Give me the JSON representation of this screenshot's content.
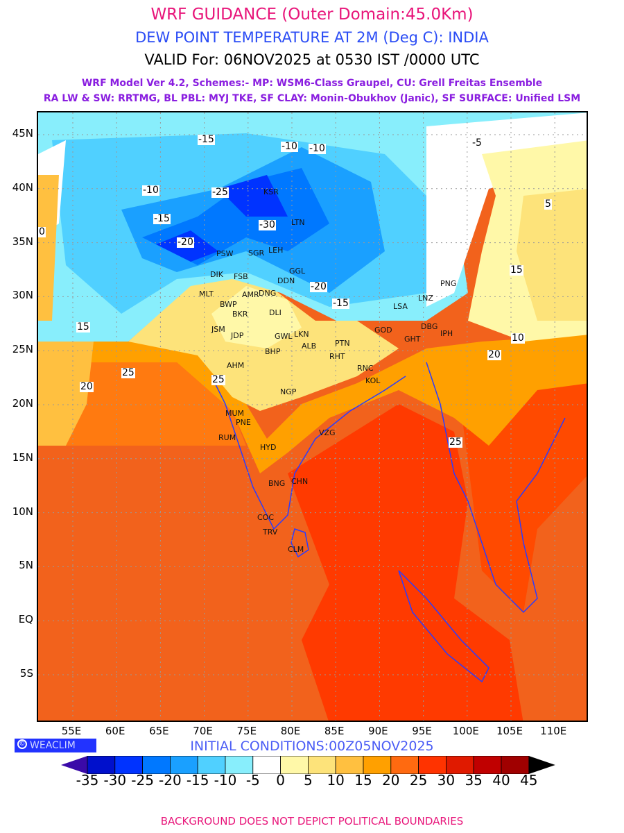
{
  "header": {
    "title": "WRF GUIDANCE (Outer Domain:45.0Km)",
    "subtitle": "DEW POINT TEMPERATURE AT 2M (Deg C): INDIA",
    "valid": "VALID For: 06NOV2025 at 0530 IST /0000 UTC",
    "model_line1": "WRF Model Ver 4.2, Schemes:- MP: WSM6-Class Graupel, CU: Grell Freitas Ensemble",
    "model_line2": "RA LW & SW: RRTMG, BL PBL: MYJ TKE, SF CLAY: Monin-Obukhov (Janic), SF SURFACE: Unified LSM"
  },
  "map": {
    "lat_labels": [
      "45N",
      "40N",
      "35N",
      "30N",
      "25N",
      "20N",
      "15N",
      "10N",
      "5N",
      "EQ",
      "5S"
    ],
    "lon_labels": [
      "55E",
      "60E",
      "65E",
      "70E",
      "75E",
      "80E",
      "85E",
      "90E",
      "95E",
      "100E",
      "105E",
      "110E"
    ],
    "cities": [
      "KSR",
      "LTN",
      "LEH",
      "PSW",
      "SGR",
      "DIK",
      "FSB",
      "MLT",
      "BWP",
      "AMR",
      "DNG",
      "DDN",
      "GGL",
      "JSM",
      "BKR",
      "DLI",
      "JDP",
      "GWL",
      "LKN",
      "ALB",
      "PTN",
      "RHT",
      "BHP",
      "AHM",
      "NGP",
      "RNC",
      "KOL",
      "GHT",
      "IPH",
      "DBG",
      "LSA",
      "LNZ",
      "PNG",
      "MUM",
      "PNE",
      "HYD",
      "VZG",
      "RUM",
      "BNG",
      "CHN",
      "COC",
      "TRV",
      "CLM",
      "GOD"
    ],
    "contour_labels": [
      "-10",
      "-15",
      "-20",
      "-25",
      "-30",
      "-5",
      "0",
      "5",
      "10",
      "15",
      "20",
      "25"
    ]
  },
  "footer": {
    "logo": "WEACLIM",
    "logo_symbol": "©",
    "initial": "INITIAL CONDITIONS:00Z05NOV2025",
    "disclaimer": "BACKGROUND DOES NOT DEPICT POLITICAL BOUNDARIES"
  },
  "colorbar": {
    "labels": [
      "-35",
      "-30",
      "-25",
      "-20",
      "-15",
      "-10",
      "-5",
      "0",
      "5",
      "10",
      "15",
      "20",
      "25",
      "30",
      "35",
      "40",
      "45"
    ],
    "colors": [
      "#3a0aa8",
      "#0010cc",
      "#0033ff",
      "#0078ff",
      "#1aa0ff",
      "#50d0ff",
      "#88eefc",
      "#ffffff",
      "#fff8a8",
      "#fde37a",
      "#ffc040",
      "#ffa000",
      "#ff6a10",
      "#ff3300",
      "#e01a00",
      "#c00000",
      "#a00000",
      "#000000"
    ]
  }
}
